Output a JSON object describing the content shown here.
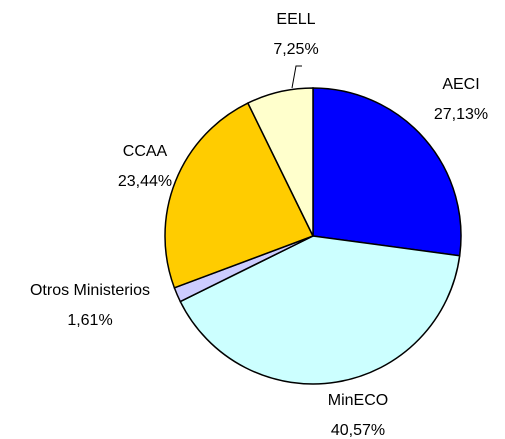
{
  "chart_data": {
    "type": "pie",
    "categories": [
      "AECI",
      "MinECO",
      "Otros Ministerios",
      "CCAA",
      "EELL"
    ],
    "values": [
      27.13,
      40.57,
      1.61,
      23.44,
      7.25
    ],
    "value_labels": [
      "27,13%",
      "40,57%",
      "1,61%",
      "23,44%",
      "7,25%"
    ],
    "colors": [
      "#0000ff",
      "#ccffff",
      "#ccccff",
      "#ffcc00",
      "#ffffcc"
    ]
  }
}
